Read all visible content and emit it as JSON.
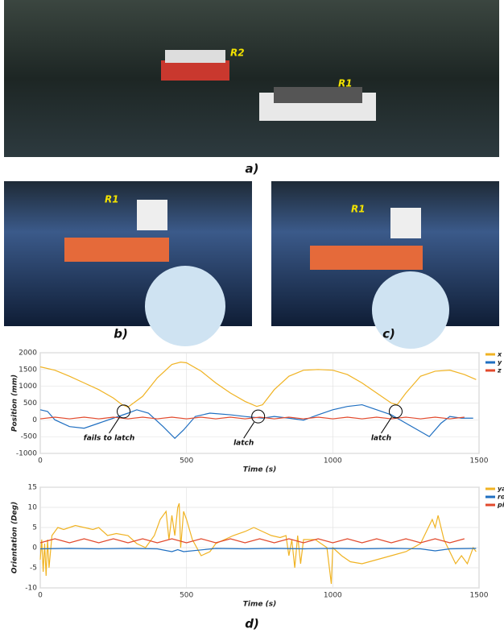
{
  "panels": {
    "a": "a)",
    "b": "b)",
    "c": "c)",
    "d": "d)"
  },
  "photo_tags": {
    "a_r2": "R2",
    "a_r1": "R1",
    "b_r1": "R1",
    "c_r1": "R1"
  },
  "chart_data": [
    {
      "type": "line",
      "ylabel": "Position (mm)",
      "xlabel": "Time (s)",
      "xlim": [
        0,
        1500
      ],
      "xticks": [
        0,
        500,
        1000,
        1500
      ],
      "ylim": [
        -1000,
        2000
      ],
      "yticks": [
        -1000,
        -500,
        0,
        500,
        1000,
        1500,
        2000
      ],
      "grid": true,
      "legend": "right",
      "annotations": [
        {
          "text": "fails to latch",
          "x": 285,
          "y": 250
        },
        {
          "text": "latch",
          "x": 745,
          "y": 100
        },
        {
          "text": "latch",
          "x": 1215,
          "y": 250
        }
      ],
      "series": [
        {
          "name": "x",
          "color": "#f0b323",
          "x": [
            0,
            50,
            100,
            150,
            200,
            250,
            280,
            300,
            350,
            400,
            450,
            480,
            500,
            550,
            600,
            650,
            700,
            740,
            760,
            800,
            850,
            900,
            950,
            1000,
            1050,
            1100,
            1150,
            1200,
            1220,
            1250,
            1300,
            1350,
            1400,
            1450,
            1490
          ],
          "values": [
            1580,
            1480,
            1300,
            1100,
            900,
            650,
            450,
            380,
            700,
            1250,
            1650,
            1720,
            1700,
            1450,
            1100,
            800,
            550,
            400,
            450,
            900,
            1300,
            1480,
            1500,
            1480,
            1350,
            1100,
            800,
            500,
            450,
            800,
            1300,
            1450,
            1480,
            1350,
            1200
          ]
        },
        {
          "name": "y",
          "color": "#1f6fc1",
          "x": [
            0,
            25,
            50,
            100,
            150,
            200,
            250,
            300,
            330,
            370,
            420,
            460,
            490,
            530,
            580,
            650,
            700,
            760,
            800,
            850,
            900,
            950,
            1000,
            1050,
            1100,
            1150,
            1200,
            1250,
            1300,
            1330,
            1370,
            1400,
            1440,
            1480
          ],
          "values": [
            300,
            250,
            0,
            -200,
            -250,
            -100,
            50,
            200,
            300,
            200,
            -200,
            -550,
            -300,
            100,
            200,
            150,
            100,
            50,
            100,
            50,
            -10,
            150,
            300,
            400,
            450,
            300,
            150,
            -100,
            -350,
            -500,
            -100,
            100,
            50,
            50
          ]
        },
        {
          "name": "z",
          "color": "#e2492c",
          "x": [
            0,
            50,
            100,
            150,
            200,
            250,
            300,
            350,
            400,
            450,
            500,
            550,
            600,
            650,
            700,
            750,
            800,
            850,
            900,
            950,
            1000,
            1050,
            1100,
            1150,
            1200,
            1250,
            1300,
            1350,
            1400,
            1450
          ],
          "values": [
            30,
            80,
            30,
            80,
            30,
            80,
            30,
            80,
            30,
            80,
            30,
            80,
            30,
            80,
            30,
            80,
            30,
            80,
            30,
            80,
            30,
            80,
            30,
            80,
            30,
            80,
            30,
            80,
            30,
            80
          ]
        }
      ]
    },
    {
      "type": "line",
      "ylabel": "Orientation (Deg)",
      "xlabel": "Time (s)",
      "xlim": [
        0,
        1500
      ],
      "xticks": [
        0,
        500,
        1000,
        1500
      ],
      "ylim": [
        -10,
        15
      ],
      "yticks": [
        -10,
        -5,
        0,
        5,
        10,
        15
      ],
      "grid": true,
      "legend": "right",
      "series": [
        {
          "name": "yaw",
          "color": "#f0b323",
          "x": [
            0,
            5,
            10,
            15,
            20,
            25,
            30,
            40,
            50,
            60,
            80,
            100,
            120,
            150,
            180,
            200,
            230,
            260,
            300,
            330,
            360,
            390,
            410,
            430,
            440,
            450,
            460,
            470,
            475,
            480,
            490,
            500,
            520,
            550,
            580,
            600,
            630,
            660,
            700,
            730,
            760,
            790,
            820,
            840,
            850,
            860,
            870,
            880,
            890,
            900,
            920,
            940,
            960,
            980,
            995,
            1000,
            1030,
            1060,
            1100,
            1150,
            1200,
            1250,
            1300,
            1320,
            1340,
            1350,
            1360,
            1380,
            1400,
            1420,
            1440,
            1460,
            1480,
            1490
          ],
          "values": [
            -3,
            2,
            -6,
            1,
            -7,
            2,
            -5,
            3,
            4,
            5,
            4.5,
            5,
            5.5,
            5,
            4.5,
            5,
            3,
            3.5,
            3,
            1,
            0,
            3,
            7,
            9,
            2,
            8,
            3,
            10,
            11,
            0,
            9,
            7,
            2,
            -2,
            -1,
            1,
            2,
            3,
            4,
            5,
            4,
            3,
            2.5,
            3,
            -2,
            2,
            -5,
            3,
            -4,
            2,
            2,
            2,
            1,
            0,
            -9,
            0,
            -2,
            -3.5,
            -4,
            -3,
            -2,
            -1,
            1,
            4,
            7,
            5,
            8,
            2,
            -1,
            -4,
            -2,
            -4,
            0,
            -1
          ]
        },
        {
          "name": "roll",
          "color": "#1f6fc1",
          "x": [
            0,
            100,
            200,
            300,
            400,
            450,
            470,
            490,
            600,
            700,
            800,
            900,
            1000,
            1100,
            1200,
            1300,
            1350,
            1400,
            1490
          ],
          "values": [
            -0.3,
            -0.2,
            -0.3,
            -0.2,
            -0.3,
            -1,
            -0.5,
            -1,
            -0.2,
            -0.3,
            -0.2,
            -0.3,
            -0.2,
            -0.3,
            -0.2,
            -0.3,
            -0.8,
            -0.3,
            -0.2
          ]
        },
        {
          "name": "pitch",
          "color": "#e2492c",
          "x": [
            0,
            50,
            100,
            150,
            200,
            250,
            300,
            350,
            400,
            450,
            500,
            550,
            600,
            650,
            700,
            750,
            800,
            850,
            900,
            950,
            1000,
            1050,
            1100,
            1150,
            1200,
            1250,
            1300,
            1350,
            1400,
            1450
          ],
          "values": [
            1.2,
            2.2,
            1.2,
            2.2,
            1.2,
            2.2,
            1.2,
            2.2,
            1.2,
            2.2,
            1.2,
            2.2,
            1.2,
            2.2,
            1.2,
            2.2,
            1.2,
            2.2,
            1.2,
            2.2,
            1.2,
            2.2,
            1.2,
            2.2,
            1.2,
            2.2,
            1.2,
            2.2,
            1.2,
            2.2
          ]
        }
      ]
    }
  ]
}
